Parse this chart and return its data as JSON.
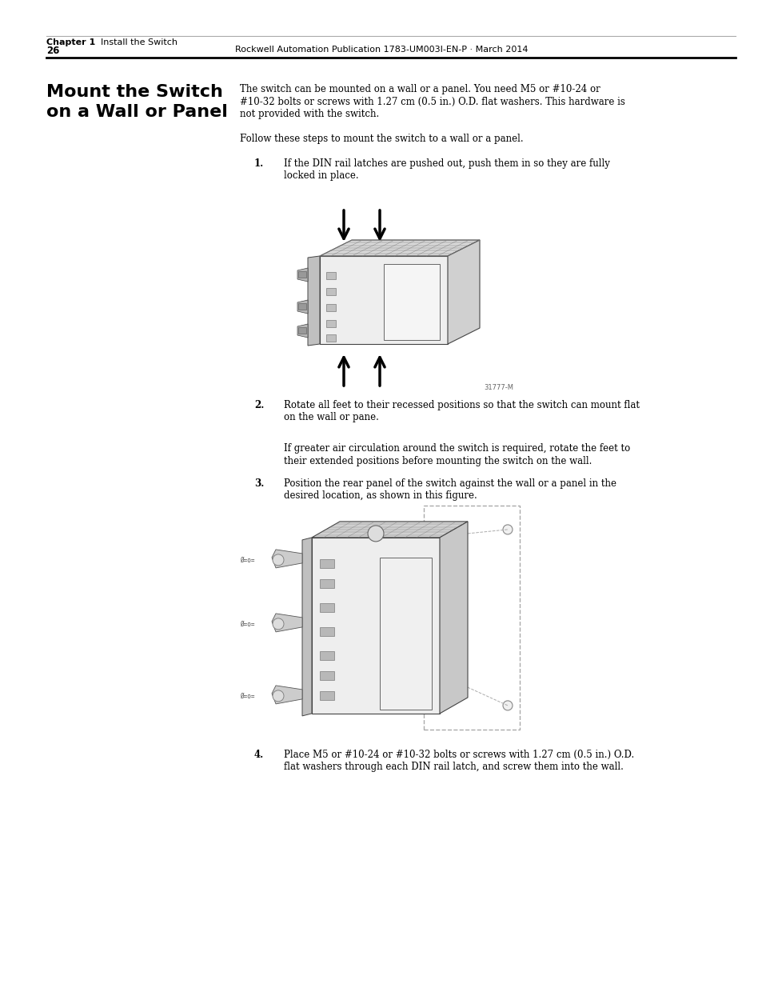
{
  "page_number": "26",
  "footer_text": "Rockwell Automation Publication 1783-UM003I-EN-P · March 2014",
  "header_chapter": "Chapter 1",
  "header_section": "    Install the Switch",
  "section_title_line1": "Mount the Switch",
  "section_title_line2": "on a Wall or Panel",
  "intro_line1": "The switch can be mounted on a wall or a panel. You need M5 or #10-24 or",
  "intro_line2": "#10-32 bolts or screws with 1.27 cm (0.5 in.) O.D. flat washers. This hardware is",
  "intro_line3": "not provided with the switch.",
  "follow_text": "Follow these steps to mount the switch to a wall or a panel.",
  "step1_num": "1.",
  "step1_line1": "If the DIN rail latches are pushed out, push them in so they are fully",
  "step1_line2": "locked in place.",
  "step2_num": "2.",
  "step2_line1": "Rotate all feet to their recessed positions so that the switch can mount flat",
  "step2_line2": "on the wall or pane.",
  "step2b_line1": "If greater air circulation around the switch is required, rotate the feet to",
  "step2b_line2": "their extended positions before mounting the switch on the wall.",
  "step3_num": "3.",
  "step3_line1": "Position the rear panel of the switch against the wall or a panel in the",
  "step3_line2": "desired location, as shown in this figure.",
  "step4_num": "4.",
  "step4_line1": "Place M5 or #10-24 or #10-32 bolts or screws with 1.27 cm (0.5 in.) O.D.",
  "step4_line2": "flat washers through each DIN rail latch, and screw them into the wall.",
  "fig1_label": "31777-M",
  "bg_color": "#ffffff",
  "text_color": "#000000",
  "fig_width": 9.54,
  "fig_height": 12.35,
  "dpi": 100
}
